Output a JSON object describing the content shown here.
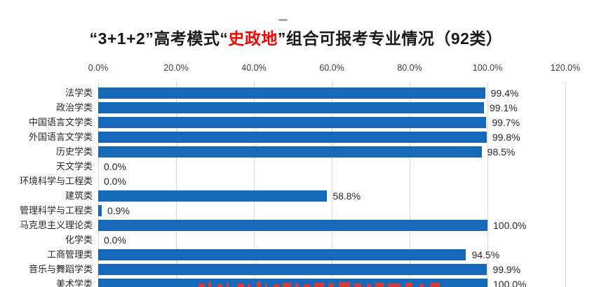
{
  "window": {
    "drag_handle_color": "#a8a8a8"
  },
  "title": {
    "prefix": "“3+1+2”高考模式“",
    "highlight": "史政地",
    "suffix": "”组合可报考专业情况（92类）",
    "highlight_color": "#fe0000",
    "text_color": "#1a1a1a"
  },
  "chart_data": {
    "type": "bar",
    "orientation": "horizontal",
    "title": "“3+1+2”高考模式“史政地”组合可报考专业情况（92类）",
    "categories": [
      "法学类",
      "政治学类",
      "中国语言文学类",
      "外国语言文学类",
      "历史学类",
      "天文学类",
      "环境科学与工程类",
      "建筑类",
      "管理科学与工程类",
      "马克思主义理论类",
      "化学类",
      "工商管理类",
      "音乐与舞蹈学类",
      "美术学类"
    ],
    "values": [
      99.4,
      99.1,
      99.7,
      99.8,
      98.5,
      0.0,
      0.0,
      58.8,
      0.9,
      100.0,
      0.0,
      94.5,
      99.9,
      100.0
    ],
    "value_labels": [
      "99.4%",
      "99.1%",
      "99.7%",
      "99.8%",
      "98.5%",
      "0.0%",
      "0.0%",
      "58.8%",
      "0.9%",
      "100.0%",
      "0.0%",
      "94.5%",
      "99.9%",
      "100.0%"
    ],
    "x_tick_labels": [
      "0.0%",
      "20.0%",
      "40.0%",
      "60.0%",
      "80.0%",
      "100.0%",
      "120.0%"
    ],
    "xlim": [
      0,
      120
    ],
    "x_tick_step": 20,
    "grid": true,
    "legend": false,
    "axis_position": "top",
    "bar_color": "#1569b8",
    "gridline_color": "#d9d9d9",
    "axis_text_color": "#3d3d3d",
    "label_text_color": "#262626"
  },
  "watermark": {
    "color": "#e23b2e"
  }
}
